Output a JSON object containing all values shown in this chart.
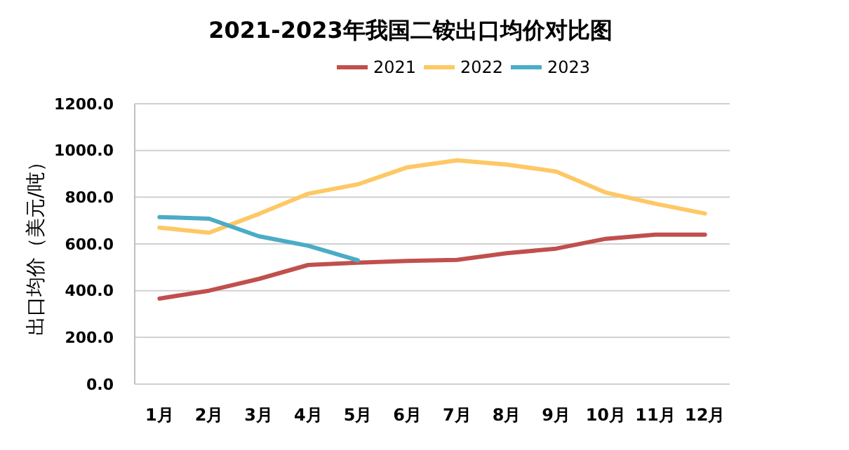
{
  "chart_data": {
    "type": "line",
    "title": "2021-2023年我国二铵出口均价对比图",
    "ylabel": "出口均价（美元/吨）",
    "categories": [
      "1月",
      "2月",
      "3月",
      "4月",
      "5月",
      "6月",
      "7月",
      "8月",
      "9月",
      "10月",
      "11月",
      "12月"
    ],
    "series": [
      {
        "name": "2021",
        "color": "#c0504d",
        "values": [
          366,
          400,
          450,
          510,
          520,
          527,
          532,
          560,
          580,
          622,
          640,
          640
        ]
      },
      {
        "name": "2022",
        "color": "#fdc865",
        "values": [
          670,
          648,
          728,
          815,
          855,
          928,
          958,
          940,
          910,
          820,
          772,
          730
        ]
      },
      {
        "name": "2023",
        "color": "#4bacc6",
        "values": [
          715,
          708,
          633,
          592,
          530,
          null,
          null,
          null,
          null,
          null,
          null,
          null
        ]
      }
    ],
    "ylim": [
      0,
      1200
    ],
    "yticks": [
      {
        "value": 0,
        "label": "0.0"
      },
      {
        "value": 200,
        "label": "200.0"
      },
      {
        "value": 400,
        "label": "400.0"
      },
      {
        "value": 600,
        "label": "600.0"
      },
      {
        "value": 800,
        "label": "800.0"
      },
      {
        "value": 1000,
        "label": "1000.0"
      },
      {
        "value": 1200,
        "label": "1200.0"
      }
    ],
    "grid": "y",
    "legend": "top",
    "marker": "none",
    "line_style": "solid"
  }
}
